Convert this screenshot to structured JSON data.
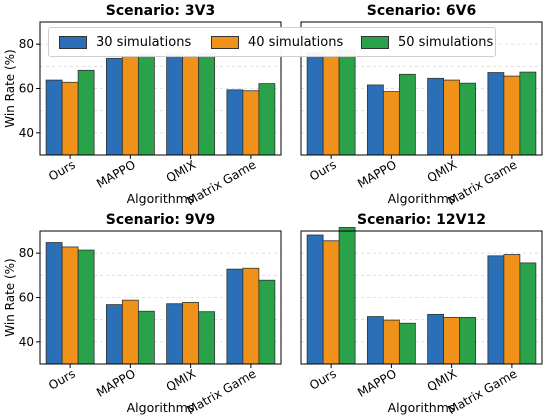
{
  "chart_data": [
    {
      "type": "bar",
      "title": "Scenario: 3V3",
      "xlabel": "Algorithms",
      "ylabel": "Win Rate (%)",
      "categories": [
        "Ours",
        "MAPPO",
        "QMIX",
        "Matrix Game"
      ],
      "ylim": [
        30,
        90
      ],
      "yticks": [
        40,
        60,
        80
      ],
      "series": [
        {
          "name": "30 simulations",
          "values": [
            63.8,
            73.6,
            75.6,
            59.4
          ]
        },
        {
          "name": "40 simulations",
          "values": [
            62.8,
            74.4,
            74.4,
            59.0
          ]
        },
        {
          "name": "50 simulations",
          "values": [
            68.2,
            75.6,
            75.8,
            62.2
          ]
        }
      ]
    },
    {
      "type": "bar",
      "title": "Scenario: 6V6",
      "xlabel": "Algorithms",
      "ylabel": "",
      "categories": [
        "Ours",
        "MAPPO",
        "QMIX",
        "Matrix Game"
      ],
      "ylim": [
        30,
        90
      ],
      "yticks": [],
      "series": [
        {
          "name": "30 simulations",
          "values": [
            76.2,
            61.6,
            64.6,
            67.2
          ]
        },
        {
          "name": "40 simulations",
          "values": [
            77.8,
            58.6,
            63.8,
            65.6
          ]
        },
        {
          "name": "50 simulations",
          "values": [
            77.4,
            66.4,
            62.4,
            67.4
          ]
        }
      ]
    },
    {
      "type": "bar",
      "title": "Scenario: 9V9",
      "xlabel": "Algorithms",
      "ylabel": "Win Rate (%)",
      "categories": [
        "Ours",
        "MAPPO",
        "QMIX",
        "Matrix Game"
      ],
      "ylim": [
        30,
        90
      ],
      "yticks": [
        40,
        60,
        80
      ],
      "series": [
        {
          "name": "30 simulations",
          "values": [
            84.8,
            56.8,
            57.2,
            72.8
          ]
        },
        {
          "name": "40 simulations",
          "values": [
            82.8,
            58.8,
            57.8,
            73.2
          ]
        },
        {
          "name": "50 simulations",
          "values": [
            81.4,
            53.8,
            53.6,
            67.8
          ]
        }
      ]
    },
    {
      "type": "bar",
      "title": "Scenario: 12V12",
      "xlabel": "Algorithms",
      "ylabel": "",
      "categories": [
        "Ours",
        "MAPPO",
        "QMIX",
        "Matrix Game"
      ],
      "ylim": [
        30,
        90
      ],
      "yticks": [],
      "series": [
        {
          "name": "30 simulations",
          "values": [
            88.2,
            51.4,
            52.4,
            78.8
          ]
        },
        {
          "name": "40 simulations",
          "values": [
            85.6,
            49.8,
            51.0,
            79.4
          ]
        },
        {
          "name": "50 simulations",
          "values": [
            91.6,
            48.4,
            51.0,
            75.6
          ]
        }
      ]
    }
  ],
  "colors": [
    "#2b6fb6",
    "#f0921a",
    "#2aa24a"
  ],
  "legend": {
    "placement": "top, spanning upper panels",
    "entries": [
      "30 simulations",
      "40 simulations",
      "50 simulations"
    ]
  },
  "grid": "horizontal dashed"
}
